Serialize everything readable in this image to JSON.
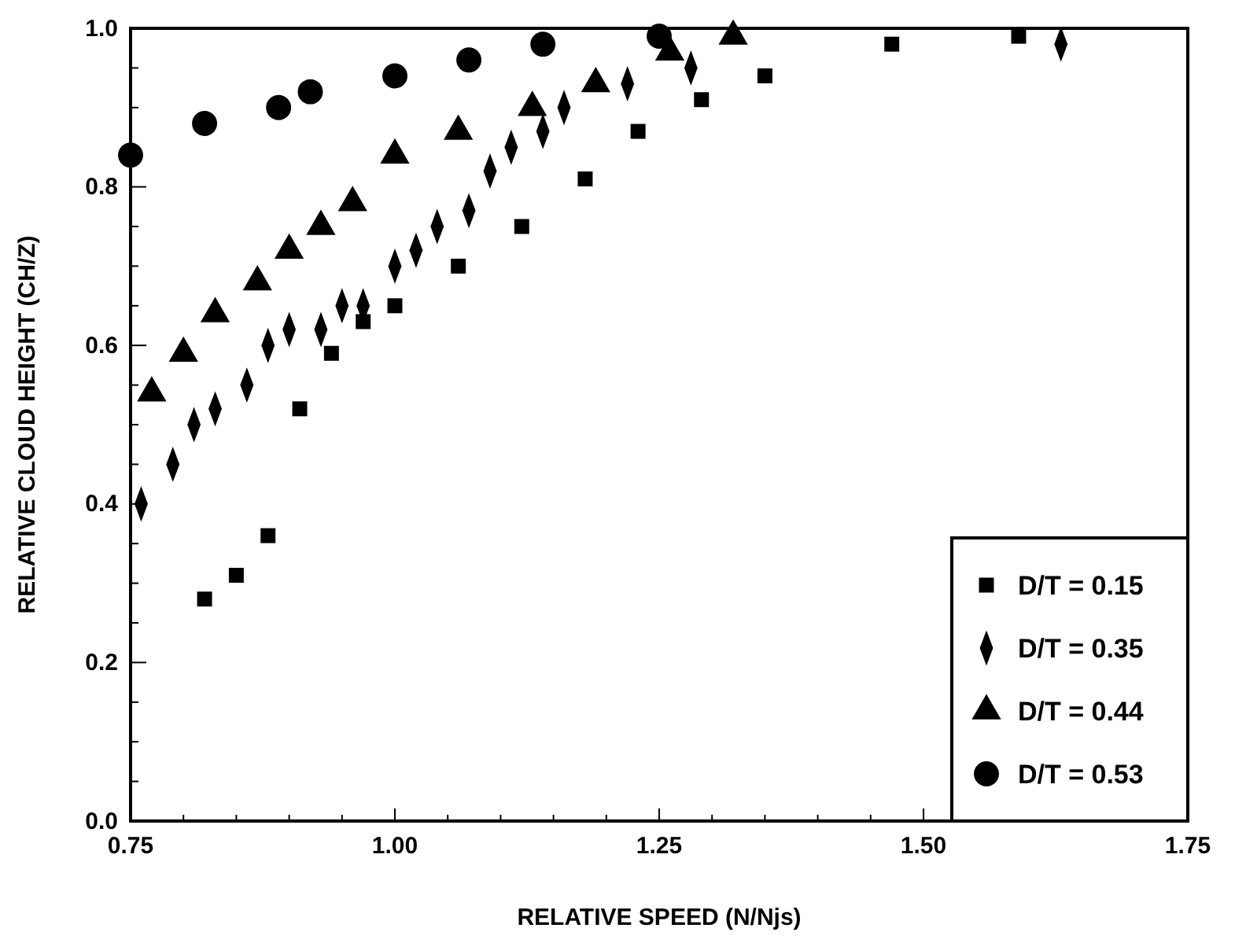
{
  "chart_data": {
    "type": "scatter",
    "xlabel": "RELATIVE SPEED (N/Njs)",
    "ylabel": "RELATIVE CLOUD HEIGHT (CH/Z)",
    "xlim": [
      0.75,
      1.75
    ],
    "xticks": [
      {
        "value": 0.75,
        "label": "0.75"
      },
      {
        "value": 0.8,
        "label": null
      },
      {
        "value": 0.85,
        "label": null
      },
      {
        "value": 0.9,
        "label": null
      },
      {
        "value": 0.95,
        "label": null
      },
      {
        "value": 1.0,
        "label": "1.00"
      },
      {
        "value": 1.05,
        "label": null
      },
      {
        "value": 1.1,
        "label": null
      },
      {
        "value": 1.15,
        "label": null
      },
      {
        "value": 1.2,
        "label": null
      },
      {
        "value": 1.25,
        "label": "1.25"
      },
      {
        "value": 1.3,
        "label": null
      },
      {
        "value": 1.35,
        "label": null
      },
      {
        "value": 1.4,
        "label": null
      },
      {
        "value": 1.45,
        "label": null
      },
      {
        "value": 1.5,
        "label": "1.50"
      },
      {
        "value": 1.55,
        "label": null
      },
      {
        "value": 1.6,
        "label": null
      },
      {
        "value": 1.65,
        "label": null
      },
      {
        "value": 1.7,
        "label": null
      },
      {
        "value": 1.75,
        "label": "1.75"
      }
    ],
    "ylim": [
      0,
      1
    ],
    "yticks": [
      {
        "value": 0,
        "label": "0.0"
      },
      {
        "value": 0.05,
        "label": null
      },
      {
        "value": 0.1,
        "label": null
      },
      {
        "value": 0.15,
        "label": null
      },
      {
        "value": 0.2,
        "label": "0.2"
      },
      {
        "value": 0.25,
        "label": null
      },
      {
        "value": 0.3,
        "label": null
      },
      {
        "value": 0.35,
        "label": null
      },
      {
        "value": 0.4,
        "label": "0.4"
      },
      {
        "value": 0.45,
        "label": null
      },
      {
        "value": 0.5,
        "label": null
      },
      {
        "value": 0.55,
        "label": null
      },
      {
        "value": 0.6,
        "label": "0.6"
      },
      {
        "value": 0.65,
        "label": null
      },
      {
        "value": 0.7,
        "label": null
      },
      {
        "value": 0.75,
        "label": null
      },
      {
        "value": 0.8,
        "label": "0.8"
      },
      {
        "value": 0.85,
        "label": null
      },
      {
        "value": 0.9,
        "label": null
      },
      {
        "value": 0.95,
        "label": null
      },
      {
        "value": 1.0,
        "label": "1.0"
      }
    ],
    "grid": false,
    "legend": "bottom right",
    "series": [
      {
        "name": "D/T = 0.15",
        "color": "#000000",
        "marker": "square",
        "x": [
          0.82,
          0.85,
          0.88,
          0.91,
          0.94,
          0.97,
          1.0,
          1.06,
          1.12,
          1.18,
          1.23,
          1.29,
          1.35,
          1.47,
          1.59
        ],
        "values": [
          0.28,
          0.31,
          0.36,
          0.52,
          0.59,
          0.63,
          0.65,
          0.7,
          0.75,
          0.81,
          0.87,
          0.91,
          0.94,
          0.98,
          0.99
        ]
      },
      {
        "name": "D/T = 0.35",
        "color": "#000000",
        "marker": "diamond",
        "x": [
          0.76,
          0.79,
          0.81,
          0.83,
          0.86,
          0.88,
          0.9,
          0.93,
          0.95,
          0.97,
          1.0,
          1.02,
          1.04,
          1.07,
          1.09,
          1.11,
          1.14,
          1.16,
          1.22,
          1.28,
          1.63
        ],
        "values": [
          0.4,
          0.45,
          0.5,
          0.52,
          0.55,
          0.6,
          0.62,
          0.62,
          0.65,
          0.65,
          0.7,
          0.72,
          0.75,
          0.77,
          0.82,
          0.85,
          0.87,
          0.9,
          0.93,
          0.95,
          0.98
        ]
      },
      {
        "name": "D/T = 0.44",
        "color": "#000000",
        "marker": "triangle",
        "x": [
          0.77,
          0.8,
          0.83,
          0.87,
          0.9,
          0.93,
          0.96,
          1.0,
          1.06,
          1.13,
          1.19,
          1.26,
          1.32
        ],
        "values": [
          0.54,
          0.59,
          0.64,
          0.68,
          0.72,
          0.75,
          0.78,
          0.84,
          0.87,
          0.9,
          0.93,
          0.97,
          0.99
        ]
      },
      {
        "name": "D/T = 0.53",
        "color": "#000000",
        "marker": "circle",
        "x": [
          0.75,
          0.82,
          0.89,
          0.92,
          1.0,
          1.07,
          1.14,
          1.25
        ],
        "values": [
          0.84,
          0.88,
          0.9,
          0.92,
          0.94,
          0.96,
          0.98,
          0.99
        ]
      }
    ]
  }
}
